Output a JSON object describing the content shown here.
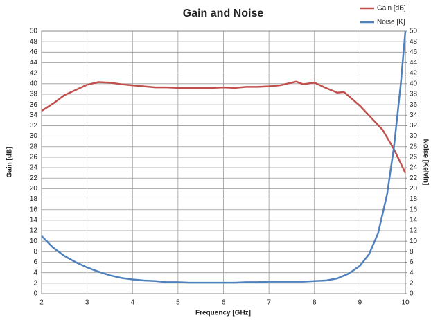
{
  "chart_data": {
    "type": "line",
    "title": "Gain and Noise",
    "xlabel": "Frequency [GHz]",
    "ylabel": "Gain [dB]",
    "y2label": "Noise [Kelvin]",
    "xlim": [
      2,
      10
    ],
    "xticks": [
      2,
      3,
      4,
      5,
      6,
      7,
      8,
      9,
      10
    ],
    "ylim": [
      0,
      50
    ],
    "yticks": [
      0,
      2,
      4,
      6,
      8,
      10,
      12,
      14,
      16,
      18,
      20,
      22,
      24,
      26,
      28,
      30,
      32,
      34,
      36,
      38,
      40,
      42,
      44,
      46,
      48,
      50
    ],
    "y2lim": [
      0,
      50
    ],
    "y2ticks": [
      0,
      2,
      4,
      6,
      8,
      10,
      12,
      14,
      16,
      18,
      20,
      22,
      24,
      26,
      28,
      30,
      32,
      34,
      36,
      38,
      40,
      42,
      44,
      46,
      48,
      50
    ],
    "grid": true,
    "legend": "top-right",
    "series": [
      {
        "name": "Gain [dB]",
        "color": "#c0504d",
        "x": [
          2,
          2.25,
          2.5,
          2.75,
          3,
          3.25,
          3.5,
          3.75,
          4,
          4.25,
          4.5,
          4.75,
          5,
          5.25,
          5.5,
          5.75,
          6,
          6.25,
          6.5,
          6.75,
          7,
          7.25,
          7.5,
          7.6,
          7.75,
          8,
          8.25,
          8.5,
          8.65,
          8.8,
          9,
          9.25,
          9.5,
          9.75,
          10
        ],
        "values": [
          34.8,
          36.2,
          37.8,
          38.8,
          39.8,
          40.3,
          40.2,
          39.9,
          39.7,
          39.5,
          39.3,
          39.3,
          39.2,
          39.2,
          39.2,
          39.2,
          39.3,
          39.2,
          39.4,
          39.4,
          39.5,
          39.7,
          40.2,
          40.4,
          39.9,
          40.2,
          39.2,
          38.3,
          38.4,
          37.3,
          35.8,
          33.5,
          31.2,
          27.5,
          23
        ]
      },
      {
        "name": "Noise [K]",
        "color": "#4f81bd",
        "axis": "y2",
        "x": [
          2,
          2.25,
          2.5,
          2.75,
          3,
          3.25,
          3.5,
          3.75,
          4,
          4.25,
          4.5,
          4.75,
          5,
          5.25,
          5.5,
          5.75,
          6,
          6.25,
          6.5,
          6.75,
          7,
          7.25,
          7.5,
          7.75,
          8,
          8.25,
          8.5,
          8.75,
          9,
          9.2,
          9.4,
          9.6,
          9.75,
          9.9,
          10
        ],
        "values": [
          11,
          8.8,
          7.2,
          6,
          5,
          4.2,
          3.5,
          3.0,
          2.7,
          2.5,
          2.4,
          2.2,
          2.2,
          2.1,
          2.1,
          2.1,
          2.1,
          2.1,
          2.2,
          2.2,
          2.3,
          2.3,
          2.3,
          2.3,
          2.4,
          2.5,
          2.9,
          3.8,
          5.3,
          7.5,
          11.5,
          19,
          28,
          40,
          50
        ]
      }
    ]
  }
}
